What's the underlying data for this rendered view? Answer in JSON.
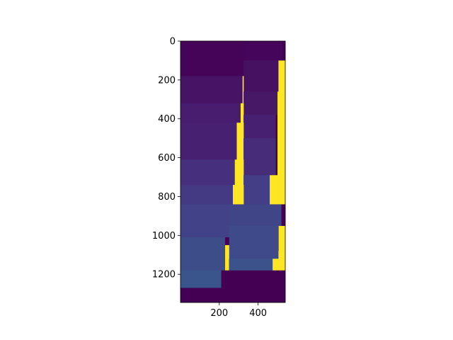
{
  "chart_data": {
    "type": "heatmap",
    "title": "",
    "xlabel": "",
    "ylabel": "",
    "x_range": [
      0,
      540
    ],
    "y_range": [
      0,
      1345
    ],
    "y_inverted": true,
    "xticks": [
      200,
      400
    ],
    "yticks": [
      0,
      200,
      400,
      600,
      800,
      1000,
      1200
    ],
    "grid": false,
    "colormap": "viridis",
    "background_value": 0.0,
    "rects": [
      {
        "x0": 0,
        "x1": 325,
        "y0": 0,
        "y1": 180,
        "value": 0.02
      },
      {
        "x0": 325,
        "x1": 525,
        "y0": 0,
        "y1": 100,
        "value": 0.03
      },
      {
        "x0": 525,
        "x1": 540,
        "y0": 0,
        "y1": 100,
        "value": 0.0
      },
      {
        "x0": 325,
        "x1": 505,
        "y0": 100,
        "y1": 260,
        "value": 0.05
      },
      {
        "x0": 505,
        "x1": 540,
        "y0": 100,
        "y1": 260,
        "value": 1.0
      },
      {
        "x0": 0,
        "x1": 320,
        "y0": 180,
        "y1": 320,
        "value": 0.06
      },
      {
        "x0": 320,
        "x1": 325,
        "y0": 180,
        "y1": 320,
        "value": 1.0
      },
      {
        "x0": 325,
        "x1": 500,
        "y0": 260,
        "y1": 380,
        "value": 0.08
      },
      {
        "x0": 500,
        "x1": 540,
        "y0": 260,
        "y1": 1080,
        "value": 1.0
      },
      {
        "x0": 0,
        "x1": 310,
        "y0": 320,
        "y1": 420,
        "value": 0.1
      },
      {
        "x0": 310,
        "x1": 325,
        "y0": 320,
        "y1": 420,
        "value": 1.0
      },
      {
        "x0": 325,
        "x1": 490,
        "y0": 380,
        "y1": 500,
        "value": 0.12
      },
      {
        "x0": 0,
        "x1": 290,
        "y0": 420,
        "y1": 610,
        "value": 0.12
      },
      {
        "x0": 290,
        "x1": 325,
        "y0": 420,
        "y1": 610,
        "value": 1.0
      },
      {
        "x0": 325,
        "x1": 490,
        "y0": 500,
        "y1": 690,
        "value": 0.16
      },
      {
        "x0": 0,
        "x1": 280,
        "y0": 610,
        "y1": 740,
        "value": 0.18
      },
      {
        "x0": 280,
        "x1": 325,
        "y0": 610,
        "y1": 740,
        "value": 1.0
      },
      {
        "x0": 325,
        "x1": 460,
        "y0": 690,
        "y1": 840,
        "value": 0.22
      },
      {
        "x0": 460,
        "x1": 500,
        "y0": 690,
        "y1": 840,
        "value": 1.0
      },
      {
        "x0": 0,
        "x1": 270,
        "y0": 740,
        "y1": 840,
        "value": 0.2
      },
      {
        "x0": 270,
        "x1": 325,
        "y0": 740,
        "y1": 840,
        "value": 1.0
      },
      {
        "x0": 0,
        "x1": 250,
        "y0": 840,
        "y1": 1010,
        "value": 0.24
      },
      {
        "x0": 250,
        "x1": 520,
        "y0": 840,
        "y1": 950,
        "value": 0.25
      },
      {
        "x0": 520,
        "x1": 540,
        "y0": 840,
        "y1": 950,
        "value": 0.0
      },
      {
        "x0": 250,
        "x1": 505,
        "y0": 950,
        "y1": 1120,
        "value": 0.27
      },
      {
        "x0": 0,
        "x1": 230,
        "y0": 1010,
        "y1": 1180,
        "value": 0.28
      },
      {
        "x0": 230,
        "x1": 250,
        "y0": 1010,
        "y1": 1050,
        "value": 0.0
      },
      {
        "x0": 230,
        "x1": 250,
        "y0": 1050,
        "y1": 1180,
        "value": 1.0
      },
      {
        "x0": 505,
        "x1": 540,
        "y0": 1080,
        "y1": 1120,
        "value": 1.0
      },
      {
        "x0": 250,
        "x1": 475,
        "y0": 1120,
        "y1": 1180,
        "value": 0.3
      },
      {
        "x0": 475,
        "x1": 505,
        "y0": 1120,
        "y1": 1180,
        "value": 1.0
      },
      {
        "x0": 505,
        "x1": 540,
        "y0": 1120,
        "y1": 1180,
        "value": 1.0
      },
      {
        "x0": 0,
        "x1": 210,
        "y0": 1180,
        "y1": 1270,
        "value": 0.34
      },
      {
        "x0": 210,
        "x1": 540,
        "y0": 1180,
        "y1": 1345,
        "value": 0.0
      },
      {
        "x0": 0,
        "x1": 210,
        "y0": 1270,
        "y1": 1345,
        "value": 0.0
      }
    ],
    "colors": {
      "c000": "#440154",
      "c002": "#450457",
      "c003": "#45055a",
      "c005": "#461160",
      "c006": "#471365",
      "c008": "#471866",
      "c010": "#481c6e",
      "c012": "#482071",
      "c016": "#472c7a",
      "c018": "#46307e",
      "c020": "#443983",
      "c022": "#433e85",
      "c024": "#414287",
      "c025": "#404588",
      "c027": "#3e4a89",
      "c028": "#3d4d8a",
      "c030": "#3b528b",
      "c034": "#3a548c",
      "c100": "#fde725"
    }
  }
}
